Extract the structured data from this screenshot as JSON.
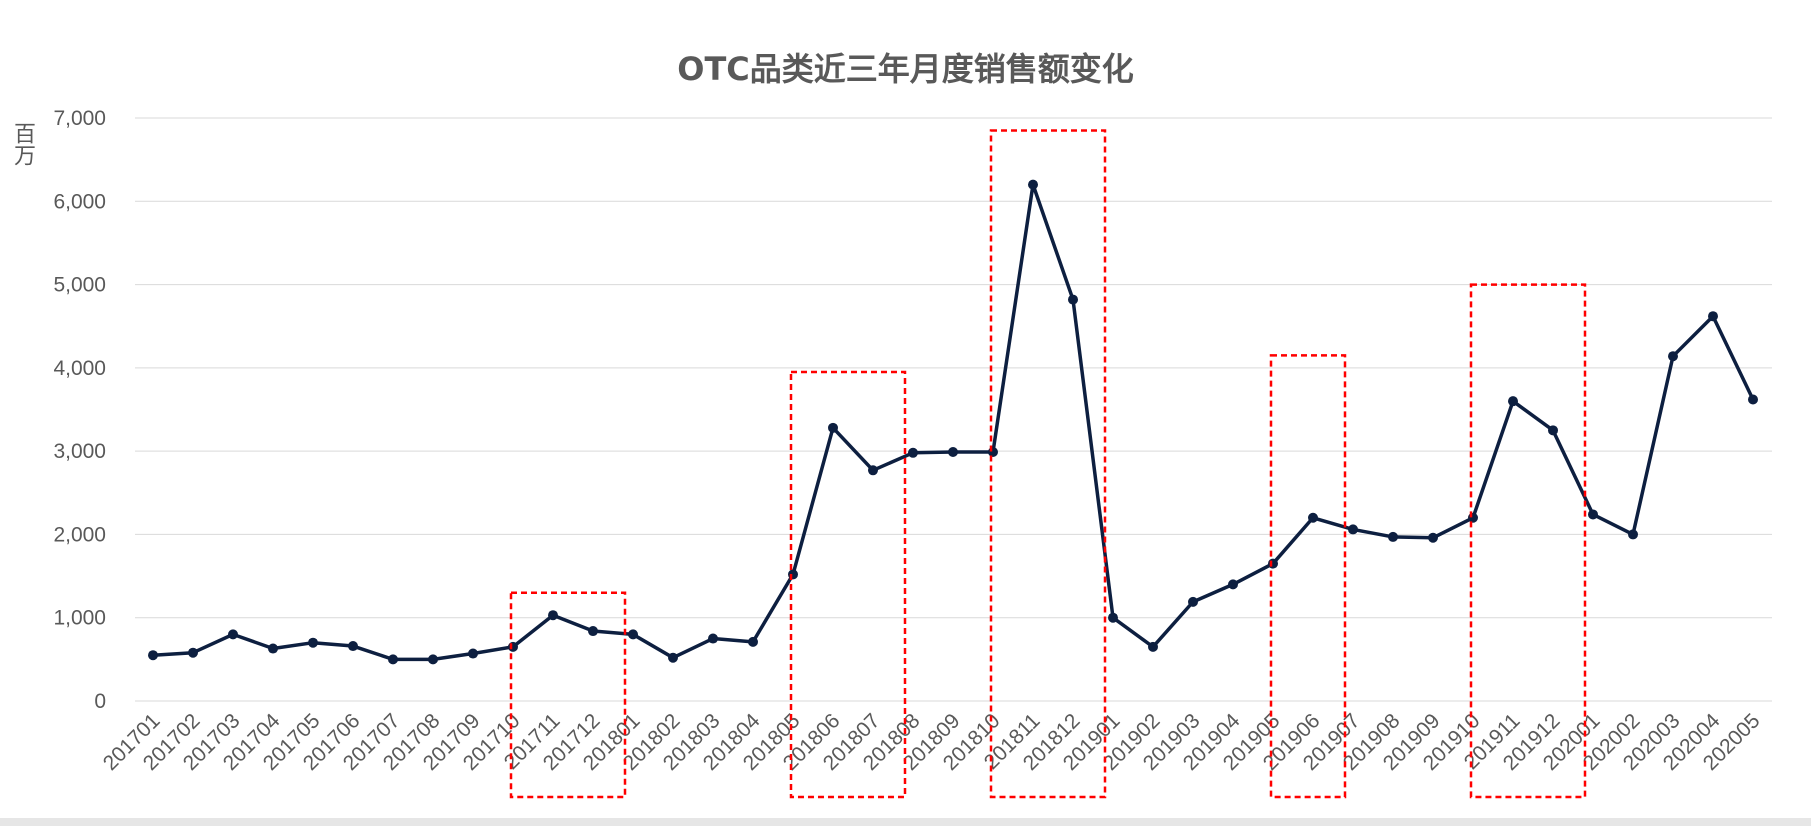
{
  "chart_data": {
    "type": "line",
    "title": "OTC品类近三年月度销售额变化",
    "ylabel": "百万",
    "xlabel": "",
    "ylim": [
      0,
      7000
    ],
    "yticks": [
      0,
      1000,
      2000,
      3000,
      4000,
      5000,
      6000,
      7000
    ],
    "ytick_labels": [
      "0",
      "1,000",
      "2,000",
      "3,000",
      "4,000",
      "5,000",
      "6,000",
      "7,000"
    ],
    "grid": true,
    "legend": "none",
    "line_color": "#0d1f40",
    "highlight_color": "#ff0000",
    "categories": [
      "201701",
      "201702",
      "201703",
      "201704",
      "201705",
      "201706",
      "201707",
      "201708",
      "201709",
      "201710",
      "201711",
      "201712",
      "201801",
      "201802",
      "201803",
      "201804",
      "201805",
      "201806",
      "201807",
      "201808",
      "201809",
      "201810",
      "201811",
      "201812",
      "201901",
      "201902",
      "201903",
      "201904",
      "201905",
      "201906",
      "201907",
      "201908",
      "201909",
      "201910",
      "201911",
      "201912",
      "202001",
      "202002",
      "202003",
      "202004",
      "202005"
    ],
    "values": [
      550,
      580,
      800,
      630,
      700,
      660,
      500,
      500,
      570,
      650,
      1030,
      840,
      800,
      520,
      750,
      710,
      1520,
      3280,
      2770,
      2980,
      2990,
      2990,
      6200,
      4820,
      1000,
      650,
      1190,
      1400,
      1650,
      2200,
      2060,
      1970,
      1960,
      2200,
      3600,
      3250,
      2240,
      2000,
      4140,
      4620,
      3620
    ],
    "highlight_ranges": [
      {
        "from": "201711",
        "to": "201712",
        "ymax": 1300
      },
      {
        "from": "201806",
        "to": "201807",
        "ymax": 3950
      },
      {
        "from": "201811",
        "to": "201812",
        "ymax": 6850
      },
      {
        "from": "201906",
        "to": "201906",
        "ymax": 4150
      },
      {
        "from": "201911",
        "to": "201912",
        "ymax": 5000
      }
    ]
  }
}
